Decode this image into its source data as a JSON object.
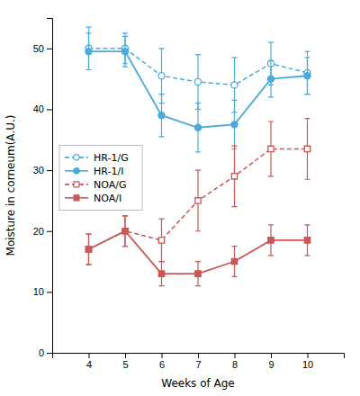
{
  "chart_data": {
    "type": "line",
    "xlabel": "Weeks of Age",
    "ylabel": "Moisture in corneum(A.U.)",
    "x": [
      4,
      5,
      6,
      7,
      8,
      9,
      10
    ],
    "xlim": [
      3,
      11
    ],
    "xticks": [
      4,
      5,
      6,
      7,
      8,
      9,
      10
    ],
    "ylim": [
      0,
      55
    ],
    "yticks": [
      0,
      10,
      20,
      30,
      40,
      50
    ],
    "grid": false,
    "legend": "left",
    "series": [
      {
        "name": "HR-1/G",
        "color": "#4AABDB",
        "marker": "circle-open",
        "line_style": "dashed",
        "values": [
          50.0,
          50.0,
          45.5,
          44.5,
          44.0,
          47.5,
          46.0
        ],
        "errors": [
          3.5,
          2.5,
          4.5,
          4.5,
          4.5,
          3.5,
          3.5
        ]
      },
      {
        "name": "HR-1/I",
        "color": "#4AABDB",
        "marker": "circle",
        "line_style": "solid",
        "values": [
          49.5,
          49.5,
          39.0,
          37.0,
          37.5,
          45.0,
          45.5
        ],
        "errors": [
          3.0,
          2.5,
          3.5,
          4.0,
          4.0,
          3.0,
          3.0
        ]
      },
      {
        "name": "NOA/G",
        "color": "#CC5555",
        "marker": "square-open",
        "line_style": "dashed",
        "values": [
          17.0,
          20.0,
          18.5,
          25.0,
          29.0,
          33.5,
          33.5
        ],
        "errors": [
          2.5,
          2.5,
          3.5,
          5.0,
          5.0,
          4.5,
          5.0
        ]
      },
      {
        "name": "NOA/I",
        "color": "#CC5555",
        "marker": "square",
        "line_style": "solid",
        "values": [
          17.0,
          20.0,
          13.0,
          13.0,
          15.0,
          18.5,
          18.5
        ],
        "errors": [
          2.5,
          2.5,
          2.0,
          2.0,
          2.5,
          2.5,
          2.5
        ]
      }
    ]
  }
}
